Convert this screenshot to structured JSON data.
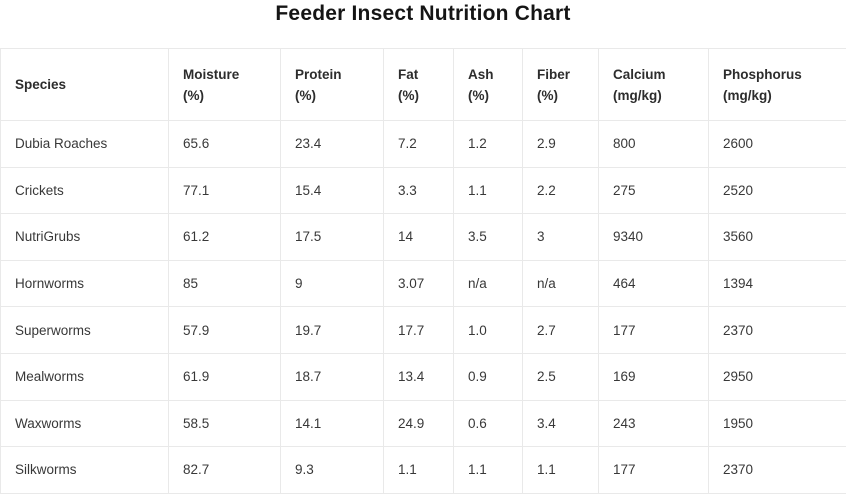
{
  "title": "Feeder Insect Nutrition Chart",
  "colors": {
    "background": "#ffffff",
    "border": "#e9e9e9",
    "title_text": "#151515",
    "header_text": "#2d2d2d",
    "cell_text": "#383838"
  },
  "chart_data": {
    "type": "table",
    "title": "Feeder Insect Nutrition Chart",
    "columns": [
      {
        "label": "Species",
        "unit": ""
      },
      {
        "label": "Moisture",
        "unit": "(%)"
      },
      {
        "label": "Protein",
        "unit": "(%)"
      },
      {
        "label": "Fat",
        "unit": "(%)"
      },
      {
        "label": "Ash",
        "unit": "(%)"
      },
      {
        "label": "Fiber",
        "unit": "(%)"
      },
      {
        "label": "Calcium",
        "unit": "(mg/kg)"
      },
      {
        "label": "Phosphorus",
        "unit": "(mg/kg)"
      }
    ],
    "rows": [
      [
        "Dubia Roaches",
        "65.6",
        "23.4",
        "7.2",
        "1.2",
        "2.9",
        "800",
        "2600"
      ],
      [
        "Crickets",
        "77.1",
        "15.4",
        "3.3",
        "1.1",
        "2.2",
        "275",
        "2520"
      ],
      [
        "NutriGrubs",
        "61.2",
        "17.5",
        "14",
        "3.5",
        "3",
        "9340",
        "3560"
      ],
      [
        "Hornworms",
        "85",
        "9",
        "3.07",
        "n/a",
        "n/a",
        "464",
        "1394"
      ],
      [
        "Superworms",
        "57.9",
        "19.7",
        "17.7",
        "1.0",
        "2.7",
        "177",
        "2370"
      ],
      [
        "Mealworms",
        "61.9",
        "18.7",
        "13.4",
        "0.9",
        "2.5",
        "169",
        "2950"
      ],
      [
        "Waxworms",
        "58.5",
        "14.1",
        "24.9",
        "0.6",
        "3.4",
        "243",
        "1950"
      ],
      [
        "Silkworms",
        "82.7",
        "9.3",
        "1.1",
        "1.1",
        "1.1",
        "177",
        "2370"
      ]
    ]
  }
}
